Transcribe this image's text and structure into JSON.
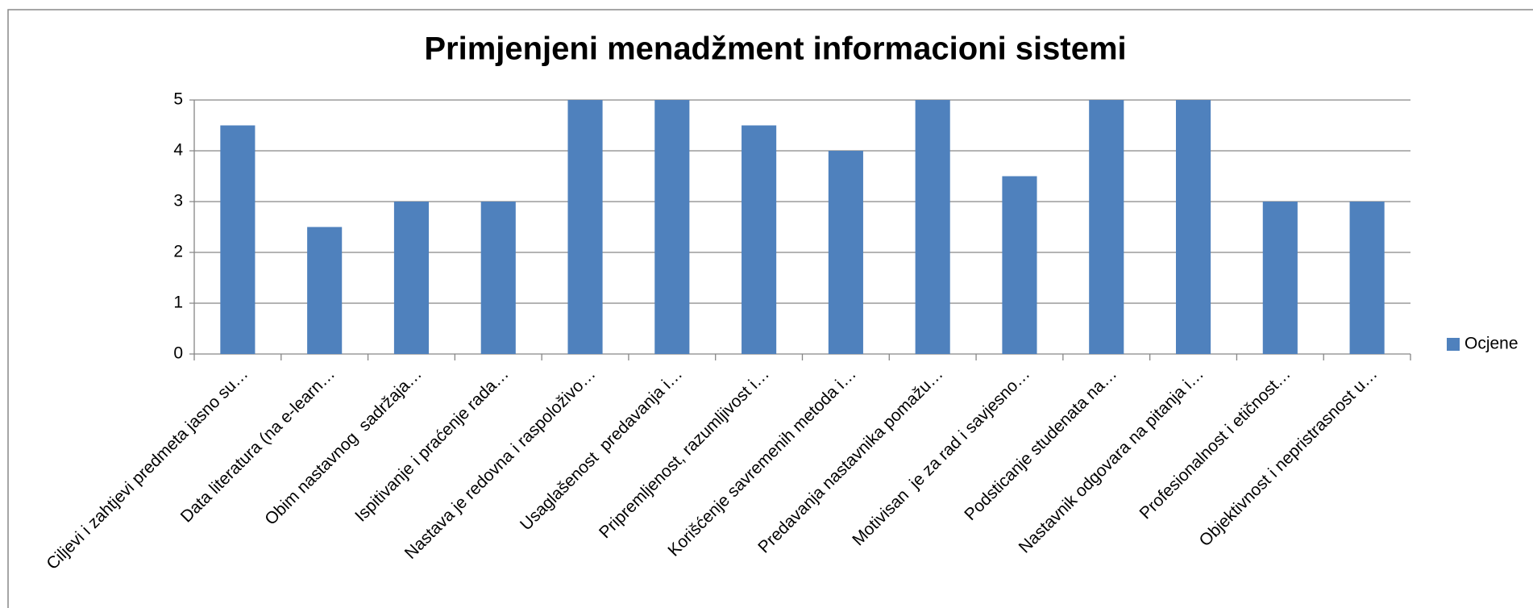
{
  "chart_data": {
    "type": "bar",
    "title": "Primjenjeni menadžment informacioni sistemi",
    "categories": [
      "Ciljevi i zahtjevi predmeta jasno su…",
      "Data literatura (na e-learn…",
      "Obim nastavnog  sadržaja…",
      "Ispitivanje i praćenje rada…",
      "Nastava je redovna i raspoloživo…",
      "Usaglašenost  predavanja i…",
      "Pripremljenost, razumljivost i…",
      "Korišćenje savremenih metoda i…",
      "Predavanja nastavnika pomažu…",
      "Motivisan  je za rad i savjesno…",
      "Podsticanje studenata na…",
      "Nastavnik odgovara na pitanja i…",
      "Profesionalnost i etičnost…",
      "Objektivnost i nepristrasnost u…"
    ],
    "series": [
      {
        "name": "Ocjene",
        "color": "#4f81bd",
        "values": [
          4.5,
          2.5,
          3,
          3,
          5,
          5,
          4.5,
          4,
          5,
          3.5,
          5,
          5,
          3,
          3
        ]
      }
    ],
    "ylim": [
      0,
      5
    ],
    "yticks": [
      0,
      1,
      2,
      3,
      4,
      5
    ],
    "grid": true,
    "legend": "right"
  }
}
